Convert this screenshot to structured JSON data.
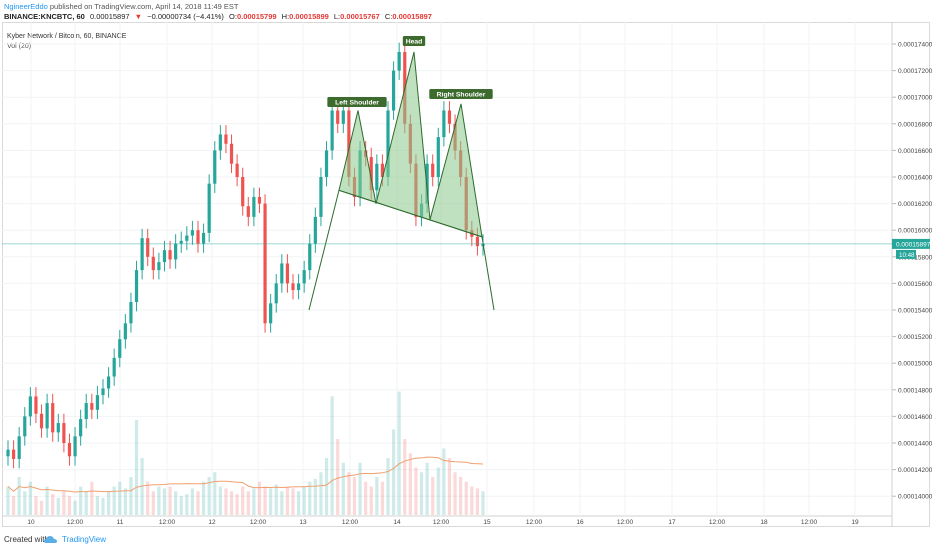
{
  "header": {
    "author": "NgineerEddo",
    "published": "published on TradingView.com, April 14, 2018 11:49 EST",
    "symbol_line": "BINANCE:KNCBTC, 60",
    "last_price": "0.00015897",
    "change": "−0.00000734 (−4.41%)",
    "open_label": "O:",
    "open": "0.00015799",
    "high_label": "H:",
    "high": "0.00015899",
    "low_label": "L:",
    "low": "0.00015767",
    "close_label": "C:",
    "close": "0.00015897"
  },
  "legend": {
    "title": "Kyber Network / Bitcoin, 60, BINANCE",
    "volume": "Vol (20)"
  },
  "colors": {
    "up": "#26a69a",
    "down": "#ef5350",
    "pattern_fill": "#8bc98b",
    "pattern_line": "#2e6b2e",
    "ma": "#f0a070",
    "price_line": "#26a69a"
  },
  "chart_data": {
    "type": "candlestick",
    "title": "Kyber Network / Bitcoin, 60, BINANCE",
    "y_ticks": [
      "0.00017400",
      "0.00017200",
      "0.00017000",
      "0.00016800",
      "0.00016600",
      "0.00016400",
      "0.00016200",
      "0.00016000",
      "0.00015800",
      "0.00015600",
      "0.00015400",
      "0.00015200",
      "0.00015000",
      "0.00014800",
      "0.00014600",
      "0.00014400",
      "0.00014200",
      "0.00014000"
    ],
    "y_tick_values": [
      0.000174,
      0.000172,
      0.00017,
      0.000168,
      0.000166,
      0.000164,
      0.000162,
      0.00016,
      0.000158,
      0.000156,
      0.000154,
      0.000152,
      0.00015,
      0.000148,
      0.000146,
      0.000144,
      0.000142,
      0.00014
    ],
    "x_ticks": [
      "10",
      "12:00",
      "11",
      "12:00",
      "12",
      "12:00",
      "13",
      "12:00",
      "14",
      "12:00",
      "15",
      "12:00",
      "16",
      "12:00",
      "17",
      "12:00",
      "18",
      "12:00",
      "19"
    ],
    "last_price_label": "0.00015897",
    "countdown_label": "10:48",
    "annotations": [
      "Head",
      "Left Shoulder",
      "Right Shoulder"
    ],
    "pattern": {
      "left_shoulder": 0.000169,
      "head": 0.0001734,
      "right_shoulder": 0.0001695,
      "neckline_start": 0.000163,
      "neckline_end": 0.0001595,
      "projection_target": 0.000154
    },
    "closes": [
      0.0001435,
      0.0001428,
      0.0001445,
      0.000146,
      0.0001475,
      0.0001462,
      0.0001451,
      0.000147,
      0.0001448,
      0.0001455,
      0.000144,
      0.000143,
      0.0001445,
      0.0001458,
      0.000147,
      0.0001465,
      0.0001476,
      0.0001481,
      0.000149,
      0.0001504,
      0.0001518,
      0.000153,
      0.0001546,
      0.000157,
      0.0001594,
      0.000158,
      0.000157,
      0.0001576,
      0.0001585,
      0.0001578,
      0.000159,
      0.0001592,
      0.0001596,
      0.00016,
      0.000159,
      0.0001598,
      0.0001635,
      0.000166,
      0.0001672,
      0.0001665,
      0.000165,
      0.000164,
      0.0001618,
      0.000161,
      0.0001625,
      0.000162,
      0.000153,
      0.0001545,
      0.000156,
      0.0001575,
      0.000156,
      0.0001555,
      0.000156,
      0.000157,
      0.000159,
      0.000161,
      0.000164,
      0.000166,
      0.000169,
      0.000168,
      0.000169,
      0.000164,
      0.0001625,
      0.000166,
      0.0001655,
      0.000163,
      0.000165,
      0.000164,
      0.000169,
      0.000172,
      0.0001734,
      0.000168,
      0.000165,
      0.000161,
      0.000162,
      0.000165,
      0.000164,
      0.000167,
      0.000169,
      0.000168,
      0.000166,
      0.000164,
      0.00016,
      0.0001595,
      0.0001588,
      0.000159
    ],
    "volumes": [
      0.3,
      0.2,
      0.4,
      0.25,
      0.35,
      0.2,
      0.15,
      0.3,
      0.22,
      0.18,
      0.25,
      0.2,
      0.15,
      0.3,
      0.25,
      0.35,
      0.2,
      0.18,
      0.25,
      0.3,
      0.35,
      0.28,
      0.4,
      1.0,
      0.6,
      0.35,
      0.25,
      0.3,
      0.28,
      0.3,
      0.25,
      0.2,
      0.22,
      0.28,
      0.25,
      0.35,
      0.4,
      0.45,
      0.3,
      0.28,
      0.25,
      0.22,
      0.3,
      0.25,
      0.28,
      0.35,
      0.3,
      0.28,
      0.32,
      0.25,
      0.3,
      0.28,
      0.25,
      0.3,
      0.35,
      0.38,
      0.45,
      0.6,
      1.25,
      0.8,
      0.55,
      0.45,
      0.4,
      0.55,
      0.35,
      0.3,
      0.4,
      0.35,
      0.6,
      0.9,
      1.3,
      0.8,
      0.65,
      0.5,
      0.45,
      0.55,
      0.4,
      0.5,
      0.7,
      0.6,
      0.45,
      0.4,
      0.35,
      0.3,
      0.28,
      0.25
    ]
  },
  "footer": {
    "created_with": "Created with",
    "brand": "TradingView"
  }
}
